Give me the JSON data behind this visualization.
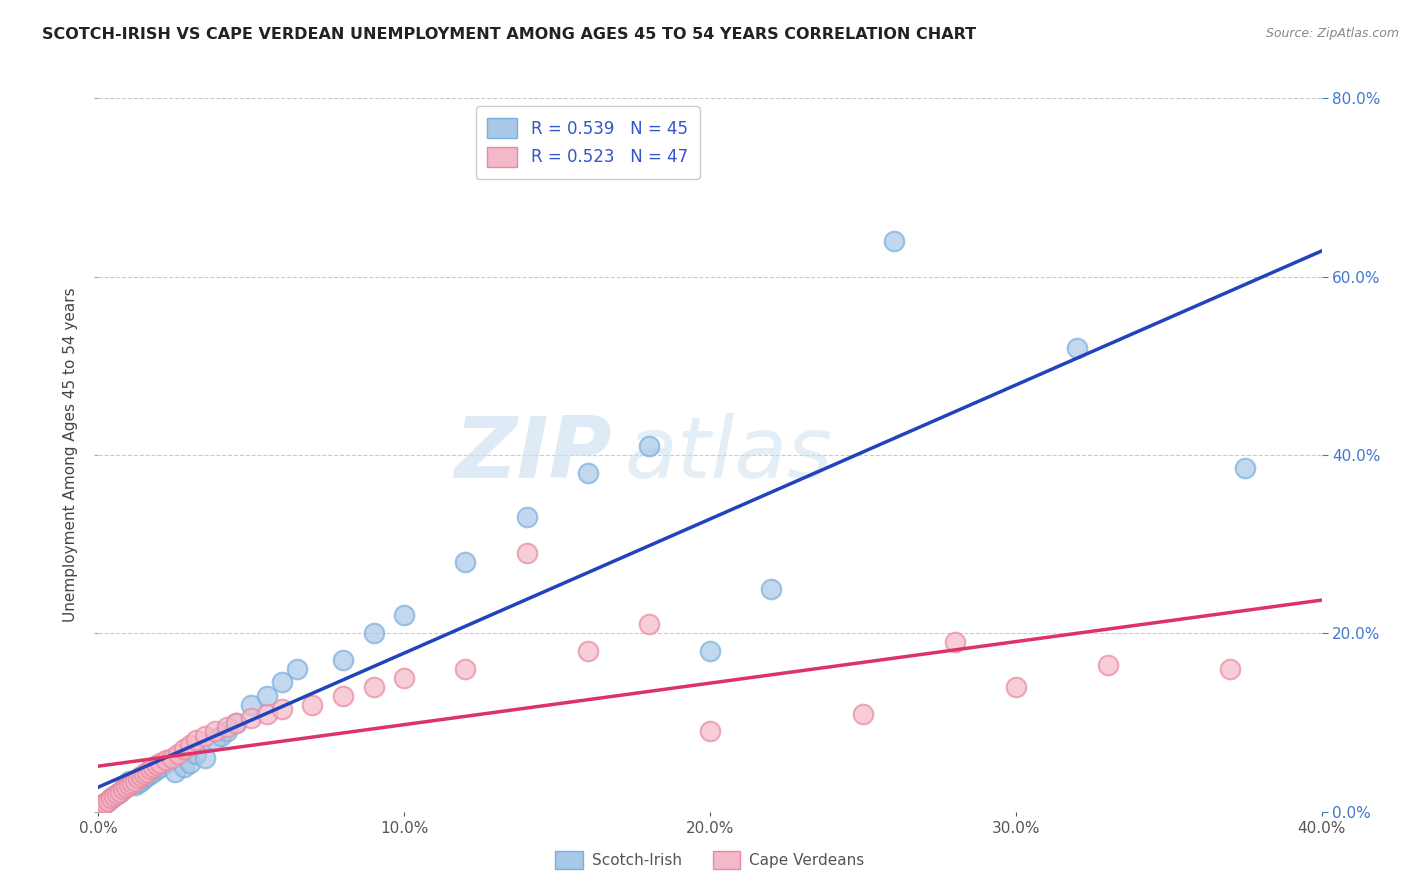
{
  "title": "SCOTCH-IRISH VS CAPE VERDEAN UNEMPLOYMENT AMONG AGES 45 TO 54 YEARS CORRELATION CHART",
  "source": "Source: ZipAtlas.com",
  "ylabel": "Unemployment Among Ages 45 to 54 years",
  "xlim": [
    0.0,
    0.4
  ],
  "ylim": [
    0.0,
    0.8
  ],
  "xticks": [
    0.0,
    0.1,
    0.2,
    0.3,
    0.4
  ],
  "yticks": [
    0.0,
    0.2,
    0.4,
    0.6,
    0.8
  ],
  "background_color": "#ffffff",
  "grid_color": "#cccccc",
  "scotch_irish_color": "#a8c8e8",
  "scotch_irish_edge_color": "#7aaedb",
  "cape_verdean_color": "#f4b8c8",
  "cape_verdean_edge_color": "#e88aa0",
  "scotch_irish_line_color": "#2244bb",
  "cape_verdean_line_color": "#dd3366",
  "scotch_irish_R": 0.539,
  "scotch_irish_N": 45,
  "cape_verdean_R": 0.523,
  "cape_verdean_N": 47,
  "watermark_zip": "ZIP",
  "watermark_atlas": "atlas",
  "scotch_irish_x": [
    0.002,
    0.003,
    0.004,
    0.005,
    0.006,
    0.007,
    0.008,
    0.009,
    0.01,
    0.01,
    0.012,
    0.013,
    0.014,
    0.015,
    0.016,
    0.017,
    0.018,
    0.019,
    0.02,
    0.022,
    0.025,
    0.028,
    0.03,
    0.032,
    0.035,
    0.038,
    0.04,
    0.042,
    0.045,
    0.05,
    0.055,
    0.06,
    0.065,
    0.08,
    0.09,
    0.1,
    0.12,
    0.14,
    0.16,
    0.18,
    0.2,
    0.22,
    0.26,
    0.32,
    0.375
  ],
  "scotch_irish_y": [
    0.01,
    0.012,
    0.015,
    0.018,
    0.02,
    0.022,
    0.025,
    0.028,
    0.03,
    0.035,
    0.03,
    0.032,
    0.035,
    0.038,
    0.04,
    0.042,
    0.045,
    0.048,
    0.05,
    0.055,
    0.045,
    0.05,
    0.055,
    0.065,
    0.06,
    0.08,
    0.085,
    0.09,
    0.1,
    0.12,
    0.13,
    0.145,
    0.16,
    0.17,
    0.2,
    0.22,
    0.28,
    0.33,
    0.38,
    0.41,
    0.18,
    0.25,
    0.64,
    0.52,
    0.385
  ],
  "cape_verdean_x": [
    0.001,
    0.002,
    0.003,
    0.004,
    0.005,
    0.006,
    0.007,
    0.008,
    0.009,
    0.01,
    0.011,
    0.012,
    0.013,
    0.014,
    0.015,
    0.016,
    0.017,
    0.018,
    0.019,
    0.02,
    0.022,
    0.024,
    0.026,
    0.028,
    0.03,
    0.032,
    0.035,
    0.038,
    0.042,
    0.045,
    0.05,
    0.055,
    0.06,
    0.07,
    0.08,
    0.09,
    0.1,
    0.12,
    0.14,
    0.16,
    0.18,
    0.2,
    0.25,
    0.28,
    0.3,
    0.33,
    0.37
  ],
  "cape_verdean_y": [
    0.008,
    0.01,
    0.012,
    0.015,
    0.018,
    0.02,
    0.022,
    0.025,
    0.028,
    0.03,
    0.032,
    0.035,
    0.038,
    0.04,
    0.042,
    0.045,
    0.048,
    0.05,
    0.052,
    0.055,
    0.058,
    0.06,
    0.065,
    0.07,
    0.075,
    0.08,
    0.085,
    0.09,
    0.095,
    0.1,
    0.105,
    0.11,
    0.115,
    0.12,
    0.13,
    0.14,
    0.15,
    0.16,
    0.29,
    0.18,
    0.21,
    0.09,
    0.11,
    0.19,
    0.14,
    0.165,
    0.16
  ]
}
